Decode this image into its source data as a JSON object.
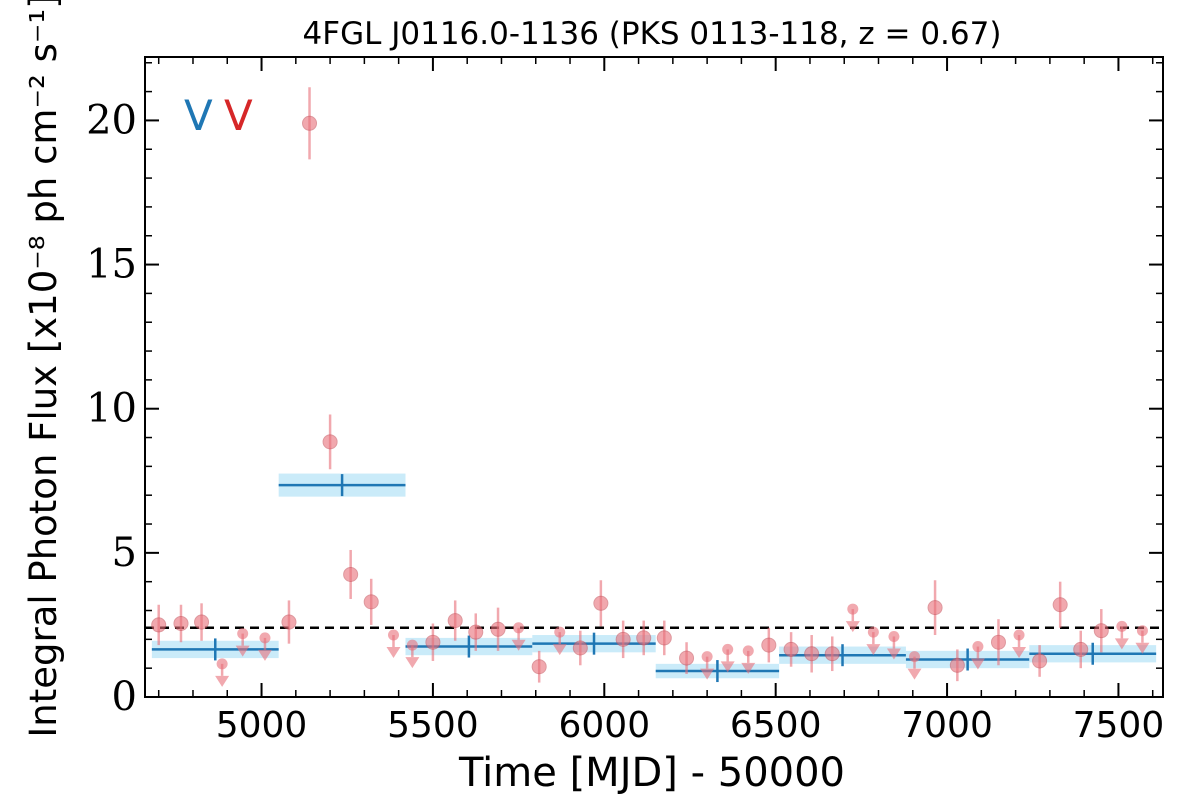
{
  "chart_data": {
    "type": "scatter",
    "title": "4FGL J0116.0-1136 (PKS 0113-118, z = 0.67)",
    "xlabel": "Time [MJD] - 50000",
    "ylabel": "Integral Photon Flux [x10⁻⁸ ph cm⁻² s⁻¹]",
    "xlim": [
      4660,
      7630
    ],
    "ylim": [
      0,
      22.2
    ],
    "x_ticks": [
      5000,
      5500,
      6000,
      6500,
      7000,
      7500
    ],
    "y_ticks": [
      0,
      5,
      10,
      15,
      20
    ],
    "grid": false,
    "reference_level": 2.4,
    "markers": [
      {
        "label": "V",
        "color": "#1f77b4"
      },
      {
        "label": "V",
        "color": "#d62728"
      }
    ],
    "colors": {
      "points": "#e8707a",
      "bins_line": "#1f77b4",
      "bins_band": "#bde6f7"
    },
    "detections": [
      {
        "x": 4700,
        "y": 2.5,
        "err": 0.7
      },
      {
        "x": 4765,
        "y": 2.55,
        "err": 0.65
      },
      {
        "x": 4825,
        "y": 2.6,
        "err": 0.65
      },
      {
        "x": 5080,
        "y": 2.6,
        "err": 0.75
      },
      {
        "x": 5140,
        "y": 19.9,
        "err": 1.25
      },
      {
        "x": 5200,
        "y": 8.85,
        "err": 0.95
      },
      {
        "x": 5260,
        "y": 4.25,
        "err": 0.85
      },
      {
        "x": 5320,
        "y": 3.3,
        "err": 0.8
      },
      {
        "x": 5500,
        "y": 1.9,
        "err": 0.65
      },
      {
        "x": 5565,
        "y": 2.65,
        "err": 0.7
      },
      {
        "x": 5625,
        "y": 2.25,
        "err": 0.65
      },
      {
        "x": 5690,
        "y": 2.35,
        "err": 0.75
      },
      {
        "x": 5810,
        "y": 1.05,
        "err": 0.55
      },
      {
        "x": 5930,
        "y": 1.7,
        "err": 0.6
      },
      {
        "x": 5990,
        "y": 3.25,
        "err": 0.8
      },
      {
        "x": 6055,
        "y": 2.0,
        "err": 0.65
      },
      {
        "x": 6115,
        "y": 2.05,
        "err": 0.6
      },
      {
        "x": 6175,
        "y": 2.05,
        "err": 0.6
      },
      {
        "x": 6240,
        "y": 1.35,
        "err": 0.55
      },
      {
        "x": 6480,
        "y": 1.8,
        "err": 0.6
      },
      {
        "x": 6545,
        "y": 1.65,
        "err": 0.6
      },
      {
        "x": 6605,
        "y": 1.5,
        "err": 0.65
      },
      {
        "x": 6665,
        "y": 1.5,
        "err": 0.6
      },
      {
        "x": 6965,
        "y": 3.1,
        "err": 0.95
      },
      {
        "x": 7030,
        "y": 1.1,
        "err": 0.55
      },
      {
        "x": 7150,
        "y": 1.9,
        "err": 0.8
      },
      {
        "x": 7270,
        "y": 1.25,
        "err": 0.55
      },
      {
        "x": 7330,
        "y": 3.2,
        "err": 0.8
      },
      {
        "x": 7390,
        "y": 1.65,
        "err": 0.65
      },
      {
        "x": 7450,
        "y": 2.3,
        "err": 0.75
      }
    ],
    "upper_limits": [
      {
        "x": 4885,
        "y": 1.15
      },
      {
        "x": 4945,
        "y": 2.2
      },
      {
        "x": 5010,
        "y": 2.05
      },
      {
        "x": 5385,
        "y": 2.15
      },
      {
        "x": 5440,
        "y": 1.8
      },
      {
        "x": 5750,
        "y": 2.4
      },
      {
        "x": 5870,
        "y": 2.25
      },
      {
        "x": 6300,
        "y": 1.4
      },
      {
        "x": 6360,
        "y": 1.65
      },
      {
        "x": 6420,
        "y": 1.6
      },
      {
        "x": 6725,
        "y": 3.05
      },
      {
        "x": 6785,
        "y": 2.25
      },
      {
        "x": 6845,
        "y": 2.1
      },
      {
        "x": 6905,
        "y": 1.4
      },
      {
        "x": 7090,
        "y": 1.75
      },
      {
        "x": 7210,
        "y": 2.15
      },
      {
        "x": 7510,
        "y": 2.45
      },
      {
        "x": 7570,
        "y": 2.3
      }
    ],
    "binned": [
      {
        "x0": 4680,
        "x1": 5050,
        "xc": 4865,
        "y": 1.65,
        "err": 0.3
      },
      {
        "x0": 5050,
        "x1": 5420,
        "xc": 5235,
        "y": 7.35,
        "err": 0.4
      },
      {
        "x0": 5420,
        "x1": 5790,
        "xc": 5605,
        "y": 1.75,
        "err": 0.3
      },
      {
        "x0": 5790,
        "x1": 6150,
        "xc": 5970,
        "y": 1.85,
        "err": 0.3
      },
      {
        "x0": 6150,
        "x1": 6510,
        "xc": 6330,
        "y": 0.9,
        "err": 0.25
      },
      {
        "x0": 6510,
        "x1": 6880,
        "xc": 6695,
        "y": 1.45,
        "err": 0.3
      },
      {
        "x0": 6880,
        "x1": 7240,
        "xc": 7060,
        "y": 1.3,
        "err": 0.3
      },
      {
        "x0": 7240,
        "x1": 7610,
        "xc": 7425,
        "y": 1.5,
        "err": 0.3
      }
    ]
  }
}
